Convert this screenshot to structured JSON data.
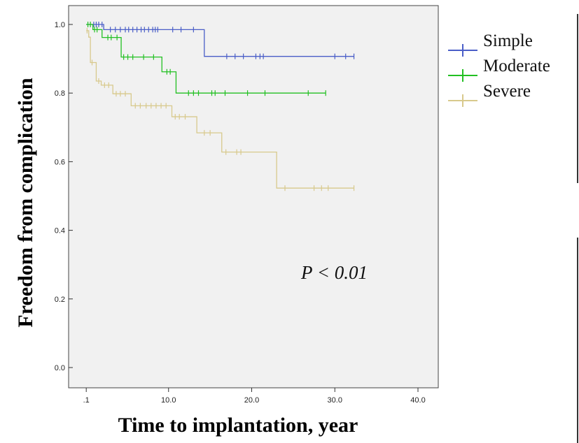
{
  "chart_data": {
    "type": "line",
    "xlabel": "Time to implantation, year",
    "ylabel": "Freedom from complication",
    "xlim": [
      0,
      40
    ],
    "ylim": [
      0,
      1.0
    ],
    "x_ticks": [
      ".1",
      "10.0",
      "20.0",
      "30.0",
      "40.0"
    ],
    "x_tick_values": [
      0.1,
      10,
      20,
      30,
      40
    ],
    "y_ticks": [
      "0.0",
      "0.2",
      "0.4",
      "0.6",
      "0.8",
      "1.0"
    ],
    "y_tick_values": [
      0,
      0.2,
      0.4,
      0.6,
      0.8,
      1.0
    ],
    "grid": false,
    "legend_position": "right",
    "annotation": "P < 0.01",
    "series": [
      {
        "name": "Simple",
        "color": "#4a5ec8",
        "steps": [
          [
            0.1,
            1.0
          ],
          [
            2.2,
            0.985
          ],
          [
            14.3,
            0.907
          ],
          [
            32.3,
            0.907
          ]
        ],
        "censored": [
          1.0,
          1.3,
          1.6,
          2.0,
          3.0,
          3.6,
          4.2,
          4.8,
          5.2,
          5.7,
          6.2,
          6.7,
          7.1,
          7.6,
          8.1,
          8.4,
          8.7,
          10.5,
          11.5,
          13.0,
          17.0,
          18.0,
          19.0,
          20.5,
          21.0,
          21.4,
          30.0,
          31.3,
          32.3
        ]
      },
      {
        "name": "Moderate",
        "color": "#22c022",
        "steps": [
          [
            0.1,
            1.0
          ],
          [
            0.9,
            0.985
          ],
          [
            2.0,
            0.962
          ],
          [
            4.3,
            0.905
          ],
          [
            9.2,
            0.862
          ],
          [
            10.9,
            0.8
          ],
          [
            28.9,
            0.8
          ]
        ],
        "censored": [
          0.3,
          0.6,
          1.1,
          1.4,
          2.7,
          3.1,
          3.8,
          4.6,
          5.1,
          5.7,
          7.0,
          8.2,
          9.8,
          10.2,
          12.4,
          13.0,
          13.6,
          15.2,
          15.6,
          16.8,
          19.5,
          21.6,
          26.8,
          28.9
        ]
      },
      {
        "name": "Severe",
        "color": "#d8c98c",
        "steps": [
          [
            0.1,
            0.982
          ],
          [
            0.4,
            0.963
          ],
          [
            0.6,
            0.889
          ],
          [
            1.3,
            0.835
          ],
          [
            1.9,
            0.823
          ],
          [
            3.3,
            0.798
          ],
          [
            5.5,
            0.763
          ],
          [
            10.4,
            0.731
          ],
          [
            13.4,
            0.684
          ],
          [
            16.4,
            0.628
          ],
          [
            23.0,
            0.523
          ],
          [
            32.3,
            0.523
          ]
        ],
        "censored": [
          0.2,
          0.8,
          1.6,
          2.3,
          2.8,
          3.7,
          4.2,
          4.8,
          6.0,
          6.6,
          7.3,
          7.9,
          8.5,
          9.1,
          9.7,
          10.8,
          11.3,
          12.0,
          14.3,
          15.0,
          16.9,
          18.2,
          18.7,
          24.0,
          27.5,
          28.4,
          29.2,
          32.3
        ]
      }
    ]
  }
}
